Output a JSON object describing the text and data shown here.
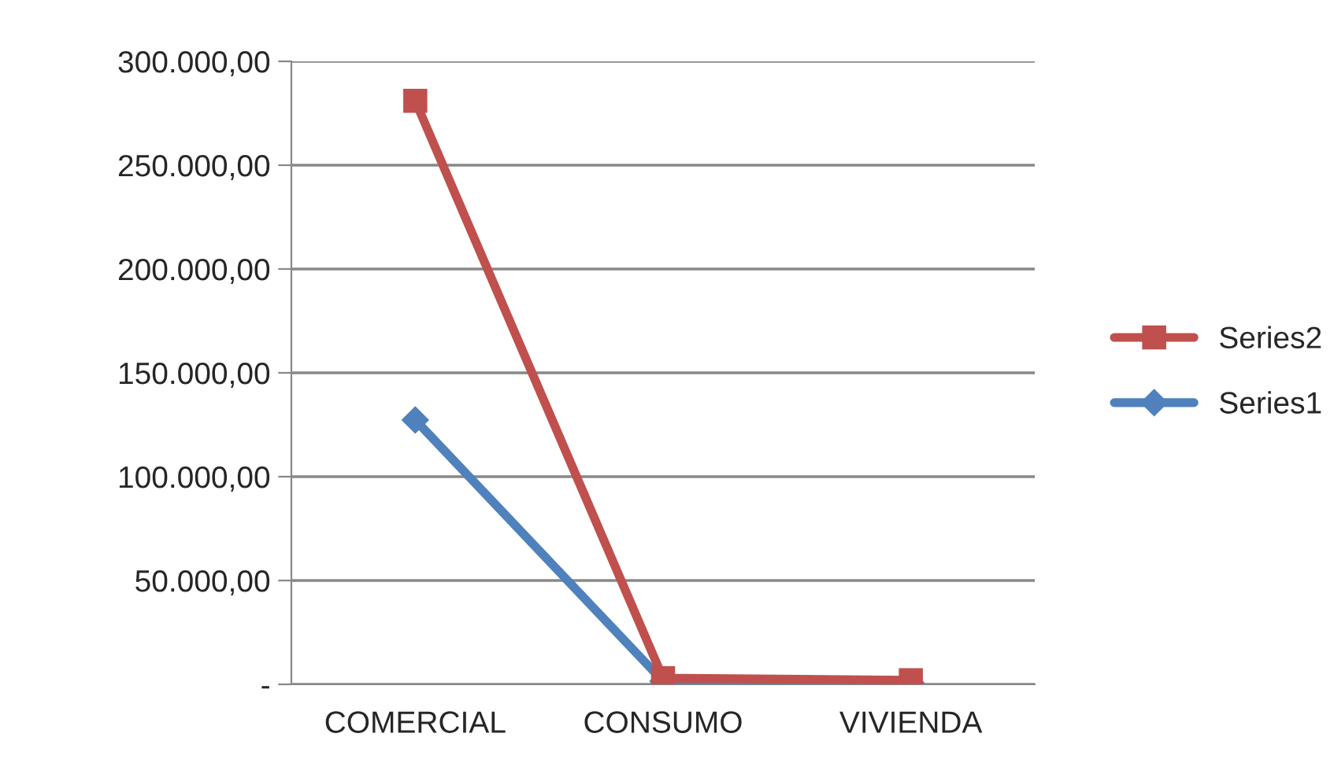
{
  "chart_data": {
    "type": "line",
    "categories": [
      "COMERCIAL",
      "CONSUMO",
      "VIVIENDA"
    ],
    "series": [
      {
        "name": "Series2",
        "color": "#c0504d",
        "marker": "square",
        "values": [
          281000,
          3000,
          2000
        ]
      },
      {
        "name": "Series1",
        "color": "#4f81bd",
        "marker": "diamond",
        "values": [
          127300,
          1500,
          800
        ]
      }
    ],
    "ylim": [
      0,
      300000
    ],
    "yticks": [
      {
        "value": 0,
        "label": "-"
      },
      {
        "value": 50000,
        "label": "50.000,00"
      },
      {
        "value": 100000,
        "label": "100.000,00"
      },
      {
        "value": 150000,
        "label": "150.000,00"
      },
      {
        "value": 200000,
        "label": "200.000,00"
      },
      {
        "value": 250000,
        "label": "250.000,00"
      },
      {
        "value": 300000,
        "label": "300.000,00"
      }
    ],
    "grid": "y",
    "legend": "right",
    "line_style": "solid"
  }
}
